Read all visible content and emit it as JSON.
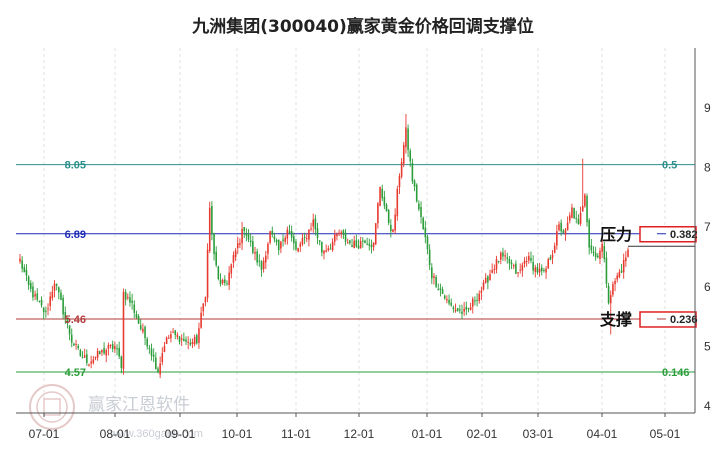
{
  "chart_data": {
    "type": "candlestick",
    "title": "九洲集团(300040)赢家黄金价格回调支撑位",
    "x_ticks": [
      "07-01",
      "08-01",
      "09-01",
      "10-01",
      "11-01",
      "12-01",
      "01-01",
      "02-01",
      "03-01",
      "04-01",
      "05-01"
    ],
    "y_ticks": [
      "4",
      "5",
      "6",
      "7",
      "8",
      "9"
    ],
    "ylim": [
      4,
      9.5
    ],
    "grid": "vertical dashed",
    "up_color": "#e8392e",
    "down_color": "#2a9d3a",
    "levels": [
      {
        "price": 8.05,
        "price_label": "8.05",
        "ratio_label": "0.5",
        "color": "#2a8f8a"
      },
      {
        "price": 6.89,
        "price_label": "6.89",
        "ratio_label": "0.382",
        "color": "#1c2bb5",
        "boxed": true
      },
      {
        "price": 5.46,
        "price_label": "5.46",
        "ratio_label": "0.236",
        "color": "#b03a3a",
        "boxed": true
      },
      {
        "price": 4.57,
        "price_label": "4.57",
        "ratio_label": "0.146",
        "color": "#2a9d3a"
      }
    ],
    "annotations": [
      {
        "text": "压力",
        "near": "0.382"
      },
      {
        "text": "支撑",
        "near": "0.236"
      }
    ],
    "series_anchors": [
      [
        0,
        6.45
      ],
      [
        4,
        6.0
      ],
      [
        8,
        5.75
      ],
      [
        12,
        5.55
      ],
      [
        16,
        6.1
      ],
      [
        20,
        5.6
      ],
      [
        24,
        5.1
      ],
      [
        28,
        4.85
      ],
      [
        32,
        4.75
      ],
      [
        36,
        4.85
      ],
      [
        40,
        4.95
      ],
      [
        44,
        5.0
      ],
      [
        47,
        4.7
      ],
      [
        48,
        5.9
      ],
      [
        52,
        5.7
      ],
      [
        56,
        5.3
      ],
      [
        60,
        5.0
      ],
      [
        64,
        4.6
      ],
      [
        67,
        5.05
      ],
      [
        70,
        5.2
      ],
      [
        74,
        5.15
      ],
      [
        78,
        5.05
      ],
      [
        82,
        5.1
      ],
      [
        86,
        5.9
      ],
      [
        88,
        7.3
      ],
      [
        90,
        6.5
      ],
      [
        93,
        6.0
      ],
      [
        96,
        6.1
      ],
      [
        100,
        6.6
      ],
      [
        104,
        7.0
      ],
      [
        108,
        6.6
      ],
      [
        112,
        6.3
      ],
      [
        116,
        6.9
      ],
      [
        120,
        6.6
      ],
      [
        124,
        7.0
      ],
      [
        128,
        6.6
      ],
      [
        132,
        6.8
      ],
      [
        136,
        7.1
      ],
      [
        140,
        6.6
      ],
      [
        144,
        6.7
      ],
      [
        148,
        6.9
      ],
      [
        152,
        6.75
      ],
      [
        156,
        6.7
      ],
      [
        160,
        6.8
      ],
      [
        164,
        6.7
      ],
      [
        167,
        7.7
      ],
      [
        170,
        7.2
      ],
      [
        173,
        6.9
      ],
      [
        176,
        7.9
      ],
      [
        179,
        8.6
      ],
      [
        182,
        7.8
      ],
      [
        185,
        7.3
      ],
      [
        188,
        6.8
      ],
      [
        191,
        6.2
      ],
      [
        195,
        5.95
      ],
      [
        199,
        5.7
      ],
      [
        203,
        5.6
      ],
      [
        207,
        5.55
      ],
      [
        211,
        5.8
      ],
      [
        215,
        6.0
      ],
      [
        219,
        6.3
      ],
      [
        223,
        6.5
      ],
      [
        227,
        6.4
      ],
      [
        231,
        6.2
      ],
      [
        235,
        6.5
      ],
      [
        239,
        6.3
      ],
      [
        243,
        6.2
      ],
      [
        247,
        6.6
      ],
      [
        250,
        7.0
      ],
      [
        253,
        6.9
      ],
      [
        256,
        7.3
      ],
      [
        259,
        7.0
      ],
      [
        262,
        7.6
      ],
      [
        264,
        6.7
      ],
      [
        267,
        6.5
      ],
      [
        270,
        6.7
      ],
      [
        273,
        5.8
      ],
      [
        276,
        6.1
      ],
      [
        279,
        6.3
      ],
      [
        282,
        6.6
      ]
    ],
    "bar_count": 283
  },
  "watermark": {
    "text": "赢家江恩软件",
    "url": "www.360gann.com",
    "icon": "logo-seal"
  }
}
